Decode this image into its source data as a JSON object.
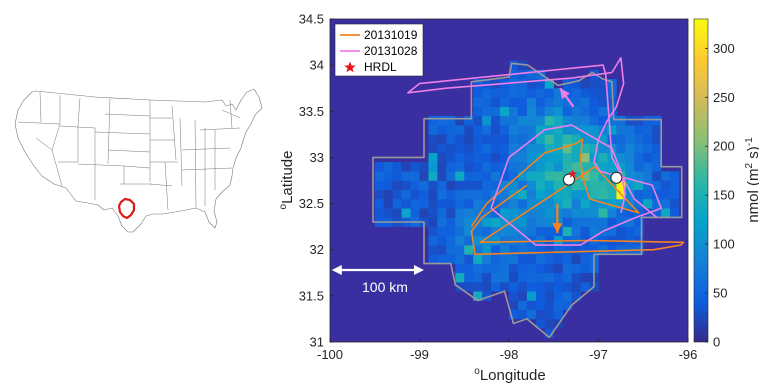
{
  "colors": {
    "background_cell": "#3a2fa0",
    "flight_20131019": "#f5821f",
    "flight_20131028": "#ee7ee6",
    "hrdl_marker": "#e8161b",
    "boundary": "#999999",
    "inset_outline": "#d91a1a",
    "scale_bar": "#ffffff"
  },
  "icons": {
    "hrdl": "red-star-marker",
    "site": "white-circle-marker",
    "scale": "double-headed-arrow"
  },
  "chart_data": {
    "type": "heatmap",
    "title": "",
    "xlabel": "o Longitude",
    "xlabel_superscript": "o",
    "xlabel_text": "Longitude",
    "ylabel": "o Latitude",
    "ylabel_superscript": "o",
    "ylabel_text": "Latitude",
    "xlim": [
      -100,
      -96
    ],
    "ylim": [
      31,
      34.5
    ],
    "x_ticks": [
      "-100",
      "-99",
      "-98",
      "-97",
      "-96"
    ],
    "y_ticks": [
      "31",
      "31.5",
      "32",
      "32.5",
      "33",
      "33.5",
      "34",
      "34.5"
    ],
    "grid": false,
    "legend_position": "top-left",
    "legend": [
      {
        "label": "20131019",
        "kind": "line"
      },
      {
        "label": "20131028",
        "kind": "line"
      },
      {
        "label": "HRDL",
        "kind": "marker"
      }
    ],
    "colorbar": {
      "label": "nmol (m2 s)-1",
      "label_prefix": "nmol (m",
      "label_sup1": "2",
      "label_mid": " s)",
      "label_sup2": "-1",
      "range": [
        0,
        330
      ],
      "ticks": [
        "0",
        "50",
        "100",
        "150",
        "200",
        "250",
        "300"
      ]
    },
    "scale_bar": {
      "label": "100 km",
      "from": [
        -99.98,
        31.78
      ],
      "to": [
        -98.95,
        31.78
      ]
    },
    "hrdl": {
      "lon": -97.29,
      "lat": 32.82
    },
    "sites": [
      {
        "lon": -97.33,
        "lat": 32.76
      },
      {
        "lon": -96.8,
        "lat": 32.78
      }
    ],
    "boundary": [
      [
        -98.65,
        31.85
      ],
      [
        -98.95,
        31.85
      ],
      [
        -98.95,
        32.3
      ],
      [
        -99.52,
        32.3
      ],
      [
        -99.52,
        33.0
      ],
      [
        -98.95,
        33.0
      ],
      [
        -98.95,
        33.42
      ],
      [
        -98.42,
        33.42
      ],
      [
        -98.42,
        33.82
      ],
      [
        -98.0,
        33.87
      ],
      [
        -97.97,
        34.02
      ],
      [
        -97.79,
        34.0
      ],
      [
        -97.64,
        33.9
      ],
      [
        -97.45,
        33.78
      ],
      [
        -97.22,
        33.83
      ],
      [
        -97.07,
        33.92
      ],
      [
        -96.95,
        33.85
      ],
      [
        -96.85,
        33.82
      ],
      [
        -96.83,
        33.41
      ],
      [
        -96.3,
        33.41
      ],
      [
        -96.3,
        32.9
      ],
      [
        -96.07,
        32.9
      ],
      [
        -96.07,
        32.35
      ],
      [
        -96.52,
        32.35
      ],
      [
        -96.52,
        31.95
      ],
      [
        -97.05,
        31.95
      ],
      [
        -97.05,
        31.6
      ],
      [
        -97.3,
        31.4
      ],
      [
        -97.55,
        31.05
      ],
      [
        -97.8,
        31.25
      ],
      [
        -97.95,
        31.2
      ],
      [
        -98.05,
        31.55
      ],
      [
        -98.35,
        31.45
      ],
      [
        -98.6,
        31.62
      ]
    ],
    "series": [
      {
        "name": "20131019",
        "x": [
          -97.8,
          -98.3,
          -98.42,
          -98.38,
          -96.38,
          -96.08,
          -96.05,
          -97.12,
          -98.32,
          -97.04,
          -96.55,
          -97.1,
          -97.18,
          -97.2,
          -97.18,
          -97.25,
          -97.6,
          -98.25,
          -98.42
        ],
        "y": [
          32.7,
          32.35,
          32.2,
          31.95,
          32.0,
          32.05,
          32.08,
          32.1,
          32.08,
          32.9,
          32.4,
          32.55,
          32.8,
          33.0,
          33.2,
          33.15,
          33.05,
          32.5,
          32.25
        ]
      },
      {
        "name": "20131028",
        "x": [
          -96.35,
          -96.6,
          -96.85,
          -96.88,
          -96.92,
          -96.95,
          -99.0,
          -99.13,
          -98.7,
          -97.3,
          -96.85,
          -96.75,
          -96.72,
          -96.8,
          -96.9,
          -97.0,
          -97.05,
          -96.98,
          -96.4,
          -96.3,
          -96.58,
          -96.95,
          -97.2,
          -97.7,
          -98.2,
          -98.0,
          -97.6,
          -97.3,
          -96.85,
          -96.75,
          -96.7,
          -96.75
        ],
        "y": [
          32.35,
          32.55,
          33.0,
          33.4,
          33.9,
          34.0,
          33.8,
          33.7,
          33.75,
          33.86,
          33.92,
          34.08,
          33.8,
          33.55,
          33.4,
          33.2,
          32.95,
          32.85,
          32.7,
          32.45,
          32.35,
          32.2,
          32.05,
          32.05,
          32.45,
          33.0,
          33.3,
          33.35,
          33.1,
          32.85,
          32.6,
          32.4
        ]
      }
    ],
    "arrows": [
      {
        "name": "20131028",
        "from": [
          -97.28,
          33.55
        ],
        "to": [
          -97.43,
          33.75
        ]
      },
      {
        "name": "20131019",
        "from": [
          -97.46,
          32.5
        ],
        "to": [
          -97.46,
          32.18
        ]
      }
    ],
    "z": [
      [
        0,
        0,
        0,
        0,
        0,
        0,
        0,
        0,
        0,
        0,
        0,
        0,
        0,
        0,
        0,
        0,
        0,
        0,
        0,
        0,
        0,
        0,
        0,
        0,
        0,
        0,
        0,
        0,
        0,
        0,
        0,
        0,
        0,
        0,
        0
      ],
      [
        0,
        0,
        0,
        0,
        0,
        0,
        0,
        0,
        0,
        0,
        0,
        0,
        0,
        0,
        0,
        0,
        0,
        0,
        0,
        0,
        0,
        0,
        0,
        0,
        0,
        0,
        0,
        0,
        0,
        0,
        0,
        0,
        0,
        0,
        0
      ],
      [
        0,
        0,
        0,
        0,
        0,
        0,
        0,
        0,
        0,
        0,
        0,
        0,
        0,
        0,
        0,
        0,
        0,
        0,
        0,
        0,
        0,
        0,
        0,
        0,
        0,
        0,
        0,
        0,
        0,
        0,
        0,
        0,
        0,
        0,
        0
      ],
      [
        0,
        0,
        0,
        0,
        0,
        0,
        0,
        0,
        0,
        0,
        0,
        0,
        0,
        0,
        0,
        0,
        0,
        0,
        0,
        0,
        0,
        0,
        0,
        0,
        0,
        0,
        0,
        0,
        0,
        0,
        0,
        0,
        0,
        0,
        0
      ],
      [
        0,
        0,
        0,
        0,
        0,
        0,
        0,
        0,
        0,
        0,
        0,
        0,
        0,
        0,
        0,
        0,
        0,
        0,
        0,
        0,
        0,
        0,
        0,
        0,
        0,
        0,
        0,
        0,
        0,
        0,
        0,
        0,
        0,
        0,
        0
      ],
      [
        0,
        0,
        0,
        0,
        0,
        0,
        0,
        0,
        0,
        0,
        0,
        0,
        0,
        0,
        0,
        0,
        0,
        0,
        0,
        0,
        0,
        0,
        0,
        0,
        0,
        0,
        0,
        0,
        0,
        0,
        0,
        0,
        0,
        0,
        0
      ],
      [
        0,
        0,
        0,
        0,
        0,
        0,
        0,
        0,
        0,
        0,
        0,
        0,
        0,
        0,
        0,
        0,
        0,
        0,
        0,
        0,
        0,
        0,
        0,
        0,
        0,
        0,
        0,
        0,
        0,
        0,
        0,
        0,
        0,
        0,
        0
      ],
      [
        0,
        0,
        0,
        0,
        0,
        0,
        0,
        0,
        0,
        0,
        0,
        0,
        0,
        0,
        0,
        0,
        0,
        0,
        0,
        0,
        0,
        0,
        0,
        0,
        0,
        0,
        0,
        0,
        0,
        0,
        0,
        0,
        0,
        0,
        0
      ],
      [
        0,
        0,
        0,
        0,
        0,
        0,
        0,
        0,
        0,
        0,
        0,
        0,
        0,
        0,
        0,
        0,
        0,
        0,
        0,
        0,
        0,
        0,
        0,
        0,
        0,
        0,
        0,
        0,
        0,
        0,
        0,
        0,
        0,
        0,
        0
      ],
      [
        0,
        0,
        0,
        0,
        0,
        0,
        0,
        0,
        0,
        0,
        0,
        0,
        0,
        0,
        0,
        0,
        0,
        0,
        0,
        0,
        0,
        0,
        0,
        0,
        0,
        0,
        0,
        0,
        0,
        0,
        0,
        0,
        0,
        0,
        0
      ],
      [
        0,
        0,
        0,
        0,
        0,
        0,
        0,
        0,
        0,
        0,
        0,
        0,
        0,
        0,
        0,
        0,
        0,
        0,
        0,
        0,
        0,
        0,
        0,
        0,
        0,
        0,
        0,
        0,
        0,
        0,
        0,
        0,
        0,
        0,
        0
      ],
      [
        0,
        0,
        0,
        0,
        0,
        0,
        0,
        0,
        0,
        0,
        0,
        0,
        0,
        0,
        0,
        0,
        0,
        0,
        0,
        0,
        0,
        0,
        0,
        0,
        0,
        0,
        0,
        0,
        0,
        0,
        0,
        0,
        0,
        0,
        0
      ],
      [
        0,
        0,
        0,
        0,
        0,
        0,
        0,
        0,
        0,
        0,
        0,
        0,
        0,
        0,
        0,
        0,
        0,
        0,
        0,
        0,
        0,
        0,
        0,
        0,
        0,
        0,
        0,
        0,
        0,
        0,
        0,
        0,
        0,
        0,
        0
      ],
      [
        0,
        0,
        0,
        0,
        0,
        0,
        0,
        0,
        0,
        0,
        0,
        0,
        0,
        0,
        0,
        0,
        0,
        0,
        0,
        0,
        0,
        0,
        0,
        0,
        0,
        0,
        0,
        0,
        0,
        0,
        0,
        0,
        0,
        0,
        0
      ],
      [
        0,
        0,
        0,
        0,
        0,
        0,
        0,
        0,
        0,
        0,
        0,
        0,
        0,
        0,
        0,
        0,
        0,
        0,
        0,
        0,
        0,
        0,
        0,
        0,
        0,
        0,
        0,
        0,
        0,
        0,
        0,
        0,
        0,
        0,
        0
      ],
      [
        0,
        0,
        0,
        0,
        0,
        0,
        0,
        0,
        0,
        0,
        0,
        0,
        0,
        0,
        0,
        0,
        0,
        0,
        0,
        0,
        0,
        0,
        0,
        0,
        0,
        0,
        0,
        0,
        0,
        0,
        0,
        0,
        0,
        0,
        0
      ],
      [
        0,
        0,
        0,
        0,
        0,
        0,
        0,
        0,
        0,
        0,
        0,
        0,
        0,
        0,
        0,
        0,
        0,
        0,
        0,
        0,
        0,
        0,
        0,
        0,
        0,
        0,
        0,
        0,
        0,
        0,
        0,
        0,
        0,
        0,
        0
      ],
      [
        0,
        0,
        0,
        0,
        0,
        0,
        0,
        0,
        0,
        0,
        0,
        0,
        0,
        0,
        0,
        0,
        0,
        0,
        0,
        0,
        0,
        0,
        0,
        0,
        0,
        0,
        0,
        0,
        0,
        0,
        0,
        0,
        0,
        0,
        0
      ],
      [
        0,
        0,
        0,
        0,
        0,
        0,
        0,
        0,
        0,
        0,
        0,
        0,
        0,
        0,
        0,
        0,
        0,
        0,
        0,
        0,
        0,
        0,
        0,
        0,
        0,
        0,
        0,
        0,
        0,
        0,
        0,
        0,
        0,
        0,
        0
      ],
      [
        0,
        0,
        0,
        0,
        0,
        0,
        0,
        0,
        0,
        0,
        0,
        0,
        0,
        0,
        0,
        0,
        0,
        0,
        0,
        0,
        0,
        0,
        0,
        0,
        0,
        0,
        0,
        0,
        0,
        0,
        0,
        0,
        0,
        0,
        0
      ],
      [
        0,
        0,
        0,
        0,
        0,
        0,
        0,
        0,
        0,
        0,
        0,
        0,
        0,
        0,
        0,
        0,
        0,
        0,
        0,
        0,
        0,
        0,
        0,
        0,
        0,
        0,
        0,
        0,
        0,
        0,
        0,
        0,
        0,
        0,
        0
      ],
      [
        0,
        0,
        0,
        0,
        0,
        0,
        0,
        0,
        0,
        0,
        0,
        0,
        0,
        0,
        0,
        0,
        0,
        0,
        0,
        0,
        0,
        0,
        0,
        0,
        0,
        0,
        0,
        0,
        0,
        0,
        0,
        0,
        0,
        0,
        0
      ],
      [
        0,
        0,
        0,
        0,
        0,
        0,
        0,
        0,
        0,
        0,
        0,
        0,
        0,
        0,
        0,
        0,
        0,
        0,
        0,
        0,
        0,
        0,
        0,
        0,
        0,
        0,
        0,
        0,
        0,
        0,
        0,
        0,
        0,
        0,
        0
      ],
      [
        0,
        0,
        0,
        0,
        0,
        0,
        0,
        0,
        0,
        0,
        0,
        0,
        0,
        0,
        0,
        0,
        0,
        0,
        0,
        0,
        0,
        0,
        0,
        0,
        0,
        0,
        0,
        0,
        0,
        0,
        0,
        0,
        0,
        0,
        0
      ],
      [
        0,
        0,
        0,
        0,
        0,
        0,
        0,
        0,
        0,
        0,
        0,
        0,
        0,
        0,
        0,
        0,
        0,
        0,
        0,
        0,
        0,
        0,
        0,
        0,
        0,
        0,
        0,
        0,
        0,
        0,
        0,
        0,
        0,
        0,
        0
      ],
      [
        0,
        0,
        0,
        0,
        0,
        0,
        0,
        0,
        0,
        0,
        0,
        0,
        0,
        0,
        0,
        0,
        0,
        0,
        0,
        0,
        0,
        0,
        0,
        0,
        0,
        0,
        0,
        0,
        0,
        0,
        0,
        0,
        0,
        0,
        0
      ],
      [
        0,
        0,
        0,
        0,
        0,
        0,
        0,
        0,
        0,
        0,
        0,
        0,
        0,
        0,
        0,
        0,
        0,
        0,
        0,
        0,
        0,
        0,
        0,
        0,
        0,
        0,
        0,
        0,
        0,
        0,
        0,
        0,
        0,
        0,
        0
      ],
      [
        0,
        0,
        0,
        0,
        0,
        0,
        0,
        0,
        0,
        0,
        0,
        0,
        0,
        0,
        0,
        0,
        0,
        0,
        0,
        0,
        0,
        0,
        0,
        0,
        0,
        0,
        0,
        0,
        0,
        0,
        0,
        0,
        0,
        0,
        0
      ],
      [
        0,
        0,
        0,
        0,
        0,
        0,
        0,
        0,
        0,
        0,
        0,
        0,
        0,
        0,
        0,
        0,
        0,
        0,
        0,
        0,
        0,
        0,
        0,
        0,
        0,
        0,
        0,
        0,
        0,
        0,
        0,
        0,
        0,
        0,
        0
      ],
      [
        0,
        0,
        0,
        0,
        0,
        0,
        0,
        0,
        0,
        0,
        0,
        0,
        0,
        0,
        0,
        0,
        0,
        0,
        0,
        0,
        0,
        0,
        0,
        0,
        0,
        0,
        0,
        0,
        0,
        0,
        0,
        0,
        0,
        0,
        0
      ]
    ]
  }
}
